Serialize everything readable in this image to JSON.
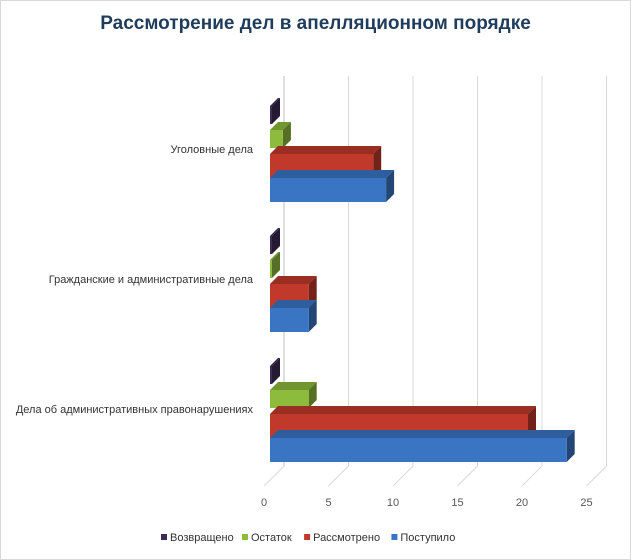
{
  "chart_data": {
    "type": "bar",
    "orientation": "horizontal",
    "title": "Рассмотрение дел в апелляционном порядке",
    "categories": [
      "Уголовные дела",
      "Гражданские и административные дела",
      "Дела об административных правонарушениях"
    ],
    "series": [
      {
        "name": "Поступило",
        "values": [
          9,
          3,
          23
        ],
        "color": "#3a75c4"
      },
      {
        "name": "Рассмотрено",
        "values": [
          8,
          3,
          20
        ],
        "color": "#c0392b"
      },
      {
        "name": "Остаток",
        "values": [
          1,
          0,
          3
        ],
        "color": "#8dbb3c"
      },
      {
        "name": "Возвращено",
        "values": [
          0,
          0,
          0
        ],
        "color": "#3d2b56"
      }
    ],
    "legend_order": [
      "Возвращено",
      "Остаток",
      "Рассмотрено",
      "Поступило"
    ],
    "xticks": [
      "0",
      "5",
      "10",
      "15",
      "20",
      "25"
    ],
    "xlim": [
      0,
      25
    ],
    "grid": true,
    "legend": "bottom"
  }
}
